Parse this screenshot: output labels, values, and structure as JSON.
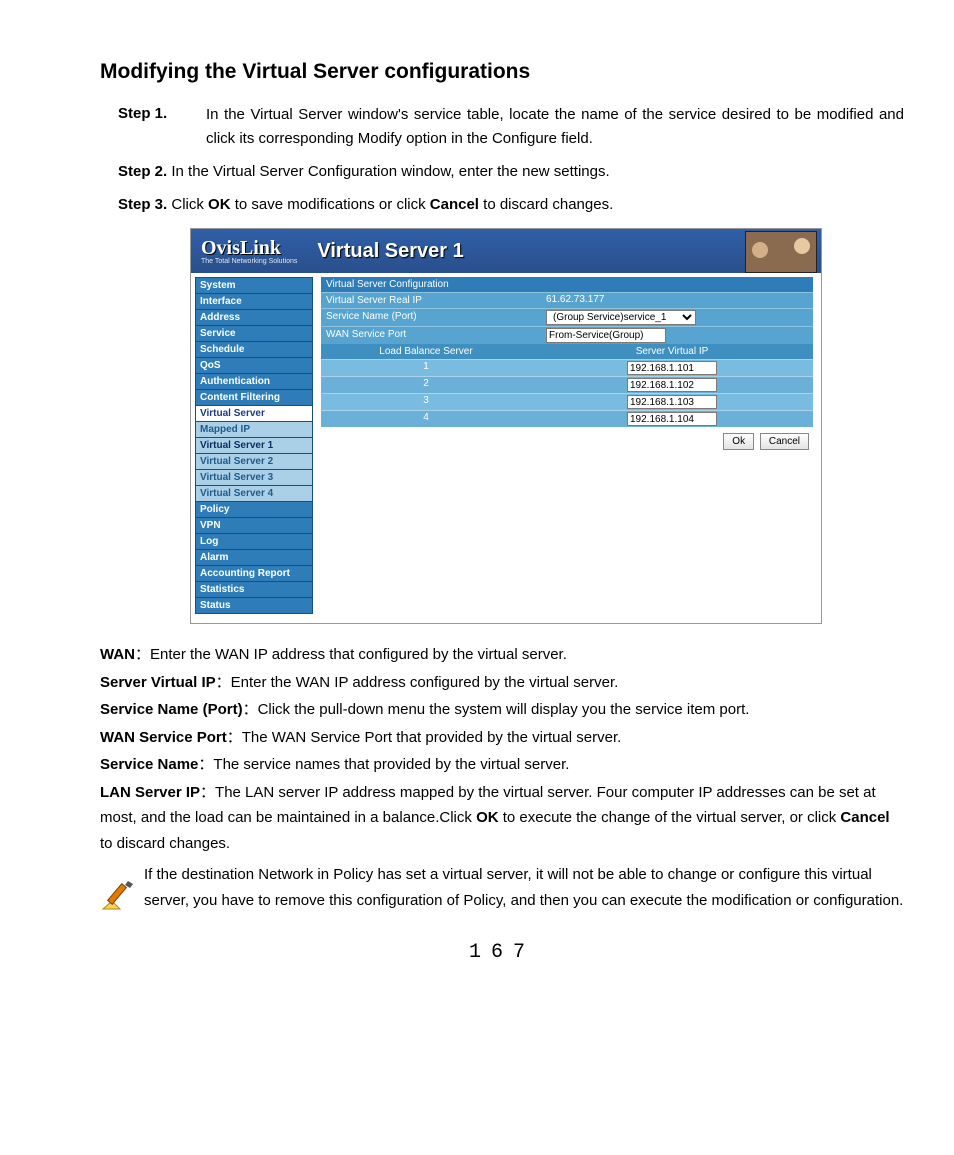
{
  "title": "Modifying the Virtual Server configurations",
  "steps": {
    "s1_label": "Step 1.",
    "s1_text": "In the Virtual Server  window's service table, locate the name of the service desired to be modified and click its corresponding Modify option in the Configure field.",
    "s2_label": "Step 2.",
    "s2_text": "In the Virtual Server Configuration window, enter the new settings.",
    "s3_label": "Step 3.",
    "s3_pre": "Click ",
    "s3_b1": "OK",
    "s3_mid": " to save modifications or click ",
    "s3_b2": "Cancel",
    "s3_post": " to discard changes."
  },
  "shot": {
    "logo": "OvisLink",
    "logo_sub": "The Total Networking Solutions",
    "banner_title": "Virtual Server 1",
    "sidebar_main": [
      "System",
      "Interface",
      "Address",
      "Service",
      "Schedule",
      "QoS",
      "Authentication",
      "Content Filtering"
    ],
    "sidebar_active": "Virtual Server",
    "sidebar_subs": [
      "Mapped IP",
      "Virtual Server 1",
      "Virtual Server 2",
      "Virtual Server 3",
      "Virtual Server 4"
    ],
    "sidebar_rest": [
      "Policy",
      "VPN",
      "Log",
      "Alarm",
      "Accounting Report",
      "Statistics",
      "Status"
    ],
    "cfg_title": "Virtual Server Configuration",
    "row_realip_lbl": "Virtual Server Real IP",
    "row_realip_val": "61.62.73.177",
    "row_service_lbl": "Service Name (Port)",
    "row_service_val": "(Group Service)service_1",
    "row_port_lbl": "WAN Service Port",
    "row_port_val": "From-Service(Group)",
    "head_c1": "Load Balance Server",
    "head_c2": "Server Virtual IP",
    "rows": [
      {
        "n": "1",
        "ip": "192.168.1.101"
      },
      {
        "n": "2",
        "ip": "192.168.1.102"
      },
      {
        "n": "3",
        "ip": "192.168.1.103"
      },
      {
        "n": "4",
        "ip": "192.168.1.104"
      }
    ],
    "btn_ok": "Ok",
    "btn_cancel": "Cancel"
  },
  "defs": {
    "wan_t": "WAN",
    "wan_d": "：Enter the WAN IP address that configured by the virtual server.",
    "svip_t": "Server Virtual IP",
    "svip_d": "：Enter the WAN IP address configured by the virtual server.",
    "snp_t": "Service Name (Port)",
    "snp_d": "：Click the pull-down menu the system will display you the service item port.",
    "wsp_t": "WAN Service Port",
    "wsp_d": "：The WAN Service Port that provided by the virtual server.",
    "sn_t": "Service Name",
    "sn_d": "：The service names that provided by the virtual server.",
    "lan_t": "LAN Server IP",
    "lan_d1": "：The LAN server IP address mapped by the virtual server. Four computer IP addresses can be set at most, and the load can be maintained in a balance.Click ",
    "lan_b1": "OK",
    "lan_d2": " to execute the change of the virtual server, or click ",
    "lan_b2": "Cancel",
    "lan_d3": " to discard changes."
  },
  "note": "If the destination Network in Policy has set a virtual server, it will not be able to change or configure this virtual server, you have to remove this configuration of Policy, and then you can execute the modification or configuration.",
  "page_number": "167"
}
